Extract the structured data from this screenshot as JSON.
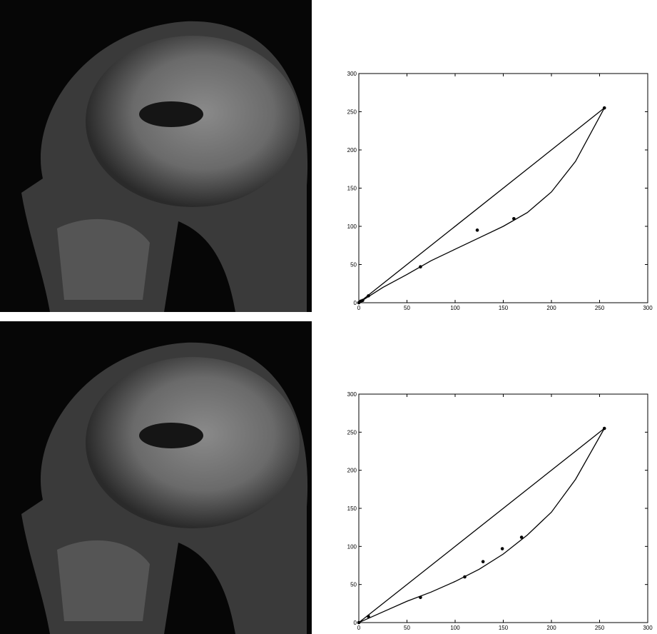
{
  "chart_data": [
    {
      "type": "scatter",
      "xlim": [
        0,
        300
      ],
      "ylim": [
        0,
        300
      ],
      "xticks": [
        0,
        50,
        100,
        150,
        200,
        250,
        300
      ],
      "yticks": [
        0,
        50,
        100,
        150,
        200,
        250,
        300
      ],
      "series": [
        {
          "mode": "markers",
          "color": "#000000",
          "x": [
            0,
            2,
            4,
            10,
            64,
            123,
            161,
            255
          ],
          "y": [
            0,
            2,
            3,
            9,
            47,
            95,
            110,
            255
          ]
        },
        {
          "mode": "line",
          "color": "#000000",
          "x": [
            0,
            255
          ],
          "y": [
            0,
            255
          ]
        },
        {
          "mode": "line",
          "color": "#000000",
          "x": [
            0,
            25,
            50,
            75,
            100,
            125,
            150,
            175,
            200,
            225,
            255
          ],
          "y": [
            0,
            20,
            37,
            55,
            70,
            85,
            100,
            118,
            145,
            185,
            255
          ]
        }
      ]
    },
    {
      "type": "scatter",
      "xlim": [
        0,
        300
      ],
      "ylim": [
        0,
        300
      ],
      "xticks": [
        0,
        50,
        100,
        150,
        200,
        250,
        300
      ],
      "yticks": [
        0,
        50,
        100,
        150,
        200,
        250,
        300
      ],
      "series": [
        {
          "mode": "markers",
          "color": "#000000",
          "x": [
            0,
            10,
            64,
            110,
            129,
            149,
            169,
            255
          ],
          "y": [
            0,
            8,
            33,
            60,
            80,
            97,
            112,
            255
          ]
        },
        {
          "mode": "line",
          "color": "#000000",
          "x": [
            0,
            255
          ],
          "y": [
            0,
            255
          ]
        },
        {
          "mode": "line",
          "color": "#000000",
          "x": [
            0,
            25,
            50,
            75,
            100,
            125,
            150,
            175,
            200,
            225,
            255
          ],
          "y": [
            0,
            14,
            28,
            40,
            54,
            70,
            90,
            115,
            145,
            188,
            255
          ]
        }
      ]
    }
  ]
}
